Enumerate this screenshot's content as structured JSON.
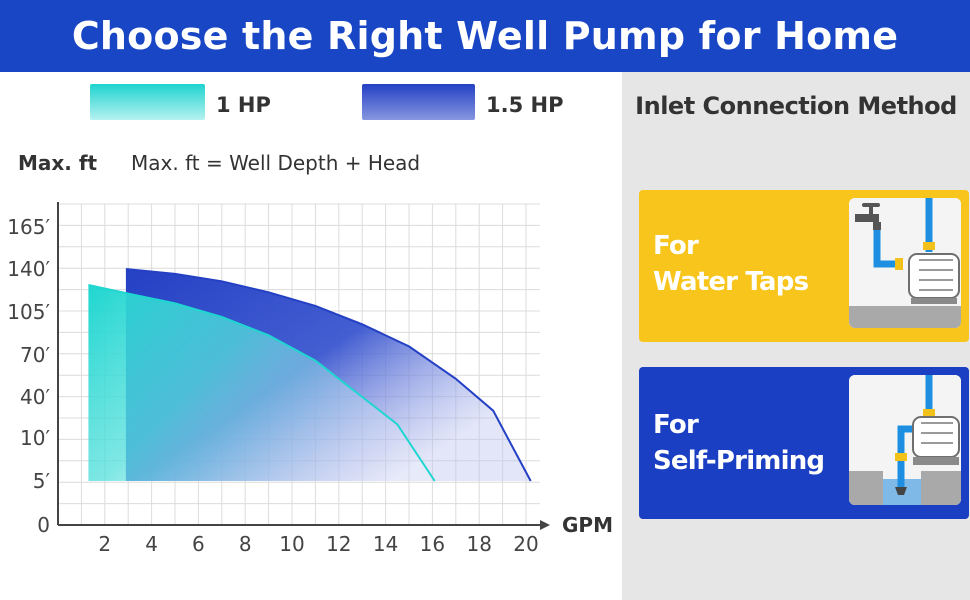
{
  "banner": {
    "title": "Choose the Right Well Pump for Home"
  },
  "chart_data": {
    "type": "area",
    "title": "",
    "ylabel": "Max. ft",
    "xlabel": "GPM",
    "annotation": "Max. ft = Well Depth + Head",
    "x_ticks": [
      2,
      4,
      6,
      8,
      10,
      12,
      14,
      16,
      18,
      20
    ],
    "y_tick_labels": [
      "0",
      "5′",
      "10′",
      "40′",
      "70′",
      "105′",
      "140′",
      "165′"
    ],
    "legend_position": "top",
    "grid": true,
    "series": [
      {
        "name": "1 HP",
        "color": "#1fd6d0",
        "x": [
          1.3,
          3,
          5,
          7,
          9,
          11,
          13,
          14.5,
          16.1
        ],
        "y": [
          127,
          120,
          112,
          101,
          86,
          66,
          40,
          20,
          5
        ]
      },
      {
        "name": "1.5 HP",
        "color": "#2a44c6",
        "x": [
          2.9,
          5,
          7,
          9,
          11,
          13,
          15,
          17,
          18.6,
          20.2
        ],
        "y": [
          140,
          136,
          130,
          121,
          110,
          95,
          77,
          53,
          30,
          5
        ]
      }
    ]
  },
  "panel": {
    "title": "Inlet Connection Method",
    "cards": [
      {
        "text_line1": "For",
        "text_line2": "Water Taps",
        "color": "#f7c51b",
        "icon": "water-tap-icon"
      },
      {
        "text_line1": "For",
        "text_line2": "Self-Priming",
        "color": "#1a3fc2",
        "icon": "self-priming-icon"
      }
    ]
  }
}
